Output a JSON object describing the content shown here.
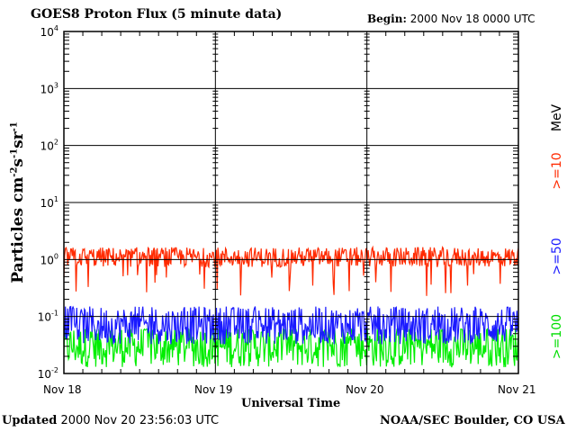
{
  "header": {
    "title": "GOES8 Proton Flux (5 minute data)",
    "begin_label": "Begin:",
    "begin_value": "2000 Nov 18 0000 UTC"
  },
  "footer": {
    "updated_label": "Updated",
    "updated_value": "2000 Nov 20 23:56:03 UTC",
    "credit": "NOAA/SEC Boulder, CO USA"
  },
  "colors": {
    "ge10": "#ff2a00",
    "ge50": "#1a1aff",
    "ge100": "#00ee00"
  },
  "chart_data": {
    "type": "line",
    "title": "GOES8 Proton Flux (5 minute data)",
    "xlabel": "Universal Time",
    "ylabel": "Particles cm-2s-1sr-1",
    "x_ticks": [
      "Nov 18",
      "Nov 19",
      "Nov 20",
      "Nov 21"
    ],
    "xlim": [
      "2000-11-18",
      "2000-11-21"
    ],
    "y_scale": "log",
    "ylim": [
      0.01,
      10000
    ],
    "y_ticks": [
      "10^-2",
      "10^-1",
      "10^0",
      "10^1",
      "10^2",
      "10^3",
      "10^4"
    ],
    "legend": {
      "placement": "right",
      "unit": "MeV",
      "entries": [
        ">=10",
        ">=50",
        ">=100"
      ]
    },
    "series": [
      {
        "name": ">=10",
        "approx_level": 1.1,
        "range": [
          0.2,
          2.2
        ],
        "color": "#ff2a00"
      },
      {
        "name": ">=50",
        "approx_level": 0.07,
        "range": [
          0.03,
          0.15
        ],
        "color": "#1a1aff"
      },
      {
        "name": ">=100",
        "approx_level": 0.03,
        "range": [
          0.01,
          0.06
        ],
        "color": "#00ee00"
      }
    ]
  }
}
